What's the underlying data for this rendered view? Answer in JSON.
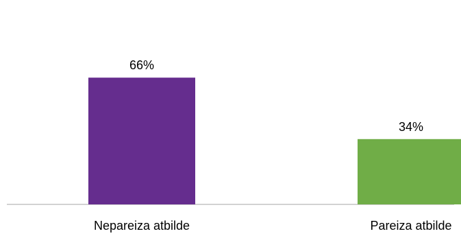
{
  "chart_data": {
    "type": "bar",
    "categories": [
      "Nepareiza atbilde",
      "Pareiza atbilde"
    ],
    "values": [
      66,
      34
    ],
    "value_labels": [
      "66%",
      "34%"
    ],
    "colors": [
      "#652d8e",
      "#70ad47"
    ],
    "ylim": [
      0,
      100
    ],
    "grid": false,
    "legend": "none"
  }
}
